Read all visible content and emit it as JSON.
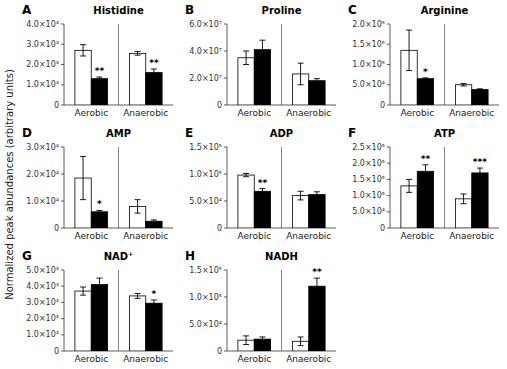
{
  "chart_data": [
    {
      "type": "bar",
      "title": "Histidine",
      "annotations": [
        "A"
      ],
      "ylabel": "Normalized peak abundances (arbitrary units)",
      "categories": [
        "Aerobic",
        "Anaerobic"
      ],
      "series": [
        {
          "color": "white",
          "values": [
            2700,
            2550
          ],
          "errors": [
            280,
            90
          ]
        },
        {
          "color": "black",
          "values": [
            1300,
            1600
          ],
          "errors": [
            80,
            180
          ],
          "annotations": [
            "**",
            "**"
          ]
        }
      ],
      "ylim": [
        0,
        4000
      ],
      "yticks": [
        0,
        {
          "value": 1000,
          "label": "1.0×10³"
        },
        {
          "value": 2000,
          "label": "2.0×10³"
        },
        {
          "value": 3000,
          "label": "3.0×10³"
        },
        {
          "value": 4000,
          "label": "4.0×10³"
        }
      ],
      "grid": false
    },
    {
      "type": "bar",
      "title": "Proline",
      "annotations": [
        "B"
      ],
      "categories": [
        "Aerobic",
        "Anaerobic"
      ],
      "series": [
        {
          "color": "white",
          "values": [
            35000000,
            23000000
          ],
          "errors": [
            5000000,
            8000000
          ]
        },
        {
          "color": "black",
          "values": [
            41000000,
            18000000
          ],
          "errors": [
            7000000,
            1500000
          ]
        }
      ],
      "ylim": [
        0,
        60000000
      ],
      "yticks": [
        0,
        {
          "value": 20000000,
          "label": "2.0×10⁷"
        },
        {
          "value": 40000000,
          "label": "4.0×10⁷"
        },
        {
          "value": 60000000,
          "label": "6.0×10⁷"
        }
      ],
      "grid": false
    },
    {
      "type": "bar",
      "title": "Arginine",
      "annotations": [
        "C"
      ],
      "categories": [
        "Aerobic",
        "Anaerobic"
      ],
      "series": [
        {
          "color": "white",
          "values": [
            135000,
            50000
          ],
          "errors": [
            50000,
            3000
          ]
        },
        {
          "color": "black",
          "values": [
            65000,
            38000
          ],
          "errors": [
            2000,
            2000
          ],
          "annotations": [
            "*",
            null
          ]
        }
      ],
      "ylim": [
        0,
        200000
      ],
      "yticks": [
        0,
        {
          "value": 50000,
          "label": "5.0×10⁴"
        },
        {
          "value": 100000,
          "label": "1.0×10⁵"
        },
        {
          "value": 150000,
          "label": "1.5×10⁵"
        },
        {
          "value": 200000,
          "label": "2.0×10⁵"
        }
      ],
      "grid": false
    },
    {
      "type": "bar",
      "title": "AMP",
      "annotations": [
        "D"
      ],
      "categories": [
        "Aerobic",
        "Anaerobic"
      ],
      "series": [
        {
          "color": "white",
          "values": [
            18500,
            8000
          ],
          "errors": [
            8000,
            2500
          ]
        },
        {
          "color": "black",
          "values": [
            6000,
            2500
          ],
          "errors": [
            500,
            500
          ],
          "annotations": [
            "*",
            null
          ]
        }
      ],
      "ylim": [
        0,
        30000
      ],
      "yticks": [
        0,
        {
          "value": 10000,
          "label": "1.0×10⁴"
        },
        {
          "value": 20000,
          "label": "2.0×10⁴"
        },
        {
          "value": 30000,
          "label": "3.0×10⁴"
        }
      ],
      "grid": false
    },
    {
      "type": "bar",
      "title": "ADP",
      "annotations": [
        "E"
      ],
      "categories": [
        "Aerobic",
        "Anaerobic"
      ],
      "series": [
        {
          "color": "white",
          "values": [
            98000,
            60000
          ],
          "errors": [
            3000,
            8000
          ]
        },
        {
          "color": "black",
          "values": [
            68000,
            62000
          ],
          "errors": [
            5000,
            5000
          ],
          "annotations": [
            "**",
            null
          ]
        }
      ],
      "ylim": [
        0,
        150000
      ],
      "yticks": [
        0,
        {
          "value": 50000,
          "label": "5.0×10⁴"
        },
        {
          "value": 100000,
          "label": "1.0×10⁵"
        },
        {
          "value": 150000,
          "label": "1.5×10⁵"
        }
      ],
      "grid": false
    },
    {
      "type": "bar",
      "title": "ATP",
      "annotations": [
        "F"
      ],
      "categories": [
        "Aerobic",
        "Anaerobic"
      ],
      "series": [
        {
          "color": "white",
          "values": [
            130000,
            90000
          ],
          "errors": [
            20000,
            15000
          ]
        },
        {
          "color": "black",
          "values": [
            175000,
            170000
          ],
          "errors": [
            20000,
            15000
          ],
          "annotations": [
            "**",
            "***"
          ]
        }
      ],
      "ylim": [
        0,
        250000
      ],
      "yticks": [
        0,
        {
          "value": 50000,
          "label": "5.0×10⁴"
        },
        {
          "value": 100000,
          "label": "1.0×10⁵"
        },
        {
          "value": 150000,
          "label": "1.5×10⁵"
        },
        {
          "value": 200000,
          "label": "2.0×10⁵"
        },
        {
          "value": 250000,
          "label": "2.5×10⁵"
        }
      ],
      "grid": false
    },
    {
      "type": "bar",
      "title": "NAD⁺",
      "annotations": [
        "G"
      ],
      "categories": [
        "Aerobic",
        "Anaerobic"
      ],
      "series": [
        {
          "color": "white",
          "values": [
            3700,
            3400
          ],
          "errors": [
            250,
            150
          ]
        },
        {
          "color": "black",
          "values": [
            4100,
            2950
          ],
          "errors": [
            400,
            200
          ],
          "annotations": [
            null,
            "*"
          ]
        }
      ],
      "ylim": [
        0,
        5000
      ],
      "yticks": [
        0,
        {
          "value": 1000,
          "label": "1.0×10³"
        },
        {
          "value": 2000,
          "label": "2.0×10³"
        },
        {
          "value": 3000,
          "label": "3.0×10³"
        },
        {
          "value": 4000,
          "label": "4.0×10³"
        },
        {
          "value": 5000,
          "label": "5.0×10³"
        }
      ],
      "grid": false
    },
    {
      "type": "bar",
      "title": "NADH",
      "annotations": [
        "H"
      ],
      "categories": [
        "Aerobic",
        "Anaerobic"
      ],
      "series": [
        {
          "color": "white",
          "values": [
            20000,
            18000
          ],
          "errors": [
            8000,
            8000
          ]
        },
        {
          "color": "black",
          "values": [
            22000,
            120000
          ],
          "errors": [
            4000,
            15000
          ],
          "annotations": [
            null,
            "**"
          ]
        }
      ],
      "ylim": [
        0,
        150000
      ],
      "yticks": [
        0,
        {
          "value": 50000,
          "label": "5.0×10⁴"
        },
        {
          "value": 100000,
          "label": "1.0×10⁵"
        },
        {
          "value": 150000,
          "label": "1.5×10⁵"
        }
      ],
      "grid": false
    }
  ]
}
